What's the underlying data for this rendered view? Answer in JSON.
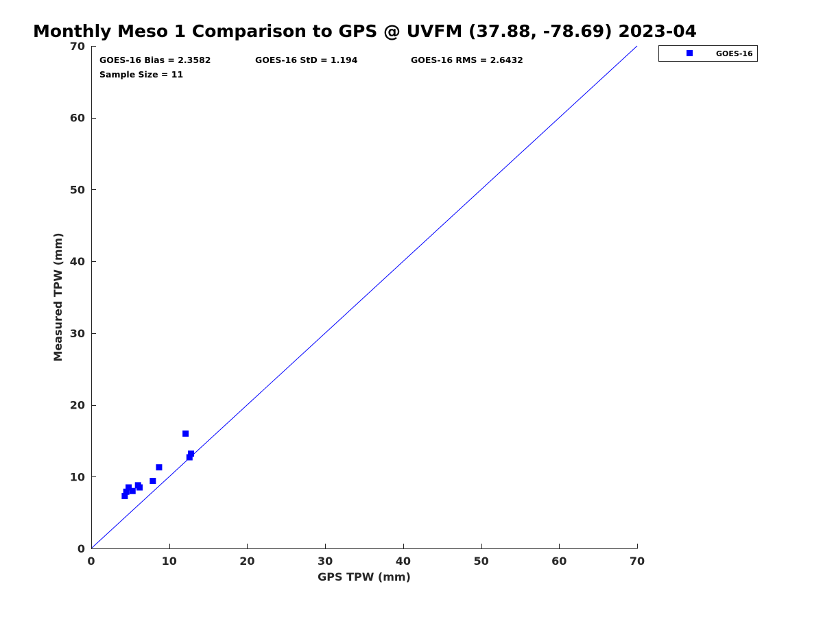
{
  "chart_data": {
    "type": "scatter",
    "title": "Monthly Meso 1 Comparison to GPS @ UVFM (37.88, -78.69) 2023-04",
    "xlabel": "GPS TPW (mm)",
    "ylabel": "Measured TPW (mm)",
    "xlim": [
      0,
      70
    ],
    "ylim": [
      0,
      70
    ],
    "xticks": [
      0,
      10,
      20,
      30,
      40,
      50,
      60,
      70
    ],
    "yticks": [
      0,
      10,
      20,
      30,
      40,
      50,
      60,
      70
    ],
    "grid": false,
    "legend_position": "outside-top-right",
    "one_to_one_line": {
      "from": [
        0,
        0
      ],
      "to": [
        70,
        70
      ],
      "color": "#0000ff"
    },
    "series": [
      {
        "name": "GOES-16",
        "marker": "square",
        "color": "#0000ff",
        "points": [
          {
            "x": 4.3,
            "y": 7.3
          },
          {
            "x": 4.5,
            "y": 7.9
          },
          {
            "x": 4.8,
            "y": 8.5
          },
          {
            "x": 5.3,
            "y": 8.0
          },
          {
            "x": 6.0,
            "y": 8.8
          },
          {
            "x": 6.2,
            "y": 8.5
          },
          {
            "x": 7.9,
            "y": 9.4
          },
          {
            "x": 8.7,
            "y": 11.3
          },
          {
            "x": 12.1,
            "y": 16.0
          },
          {
            "x": 12.6,
            "y": 12.7
          },
          {
            "x": 12.8,
            "y": 13.2
          }
        ]
      }
    ],
    "annotations": {
      "bias": "GOES-16 Bias = 2.3582",
      "std": "GOES-16 StD = 1.194",
      "rms": "GOES-16 RMS = 2.6432",
      "sample_size": "Sample Size = 11"
    }
  }
}
